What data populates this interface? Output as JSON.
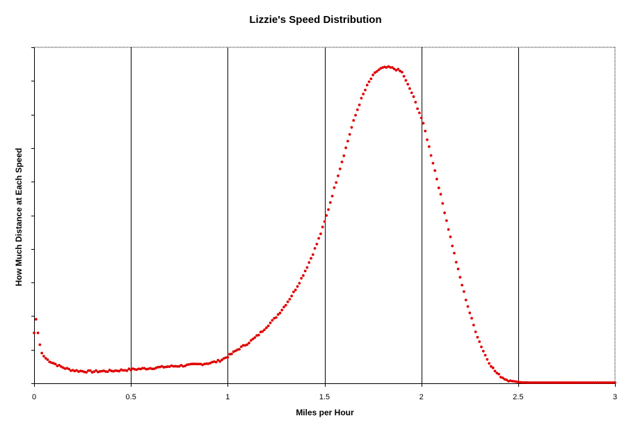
{
  "chart_data": {
    "type": "scatter",
    "title": "Lizzie's Speed Distribution",
    "xlabel": "Miles per Hour",
    "ylabel": "How Much Distance at Each Speed",
    "xlim": [
      0,
      3
    ],
    "ylim": [
      0,
      100
    ],
    "x_ticks": [
      "0",
      "0.5",
      "1",
      "1.5",
      "2",
      "2.5",
      "3"
    ],
    "x_tick_values": [
      0,
      0.5,
      1,
      1.5,
      2,
      2.5,
      3
    ],
    "y_tick_count": 10,
    "y_tick_labels_shown": false,
    "grid": "vertical",
    "legend": "none",
    "marker_color": "#e00000",
    "curve_keypoints": {
      "x": [
        0.0,
        0.005,
        0.02,
        0.04,
        0.07,
        0.1,
        0.15,
        0.2,
        0.25,
        0.3,
        0.35,
        0.4,
        0.5,
        0.6,
        0.7,
        0.8,
        0.9,
        0.95,
        1.0,
        1.05,
        1.1,
        1.15,
        1.2,
        1.25,
        1.3,
        1.35,
        1.4,
        1.45,
        1.5,
        1.55,
        1.6,
        1.65,
        1.7,
        1.75,
        1.78,
        1.8,
        1.83,
        1.86,
        1.9,
        1.92,
        1.95,
        1.98,
        2.0,
        2.05,
        2.1,
        2.15,
        2.2,
        2.25,
        2.3,
        2.35,
        2.4,
        2.45,
        2.5,
        2.52,
        2.6,
        2.8,
        3.0
      ],
      "y": [
        15,
        20,
        15,
        9,
        7,
        6,
        4.7,
        3.9,
        3.6,
        3.5,
        3.6,
        3.7,
        4.1,
        4.5,
        5,
        5.4,
        6,
        6.6,
        8,
        10,
        11.8,
        14,
        16.8,
        19.8,
        23.5,
        28,
        33.5,
        40,
        48,
        58,
        68,
        78,
        86,
        91.5,
        93.3,
        93.8,
        94,
        93.6,
        92.5,
        90,
        86.5,
        82,
        79,
        68,
        56,
        43.5,
        31.5,
        21,
        12.4,
        6.2,
        2.5,
        0.9,
        0.4,
        0.25,
        0.2,
        0.2,
        0.2
      ]
    }
  }
}
